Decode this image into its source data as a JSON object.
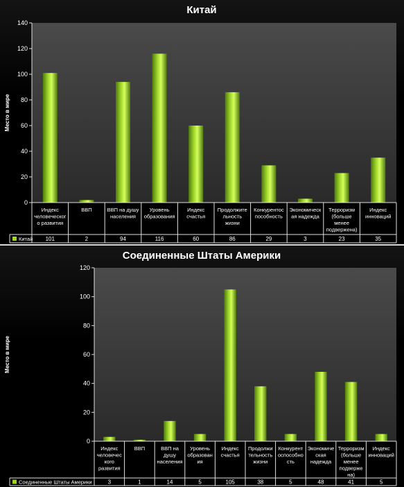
{
  "chart_data": [
    {
      "type": "bar",
      "title": "Китай",
      "ylabel": "Место в мире",
      "ylim": [
        0,
        140
      ],
      "yticks": [
        0,
        20,
        40,
        60,
        80,
        100,
        120,
        140
      ],
      "categories": [
        [
          "Индекс",
          "человеческог",
          "о развития"
        ],
        [
          "ВВП"
        ],
        [
          "ВВП на душу",
          "населения"
        ],
        [
          "Уровень",
          "образования"
        ],
        [
          "Индекс",
          "счастья"
        ],
        [
          "Продолжите",
          "льность",
          "жизни"
        ],
        [
          "Конкурентос",
          "пособность"
        ],
        [
          "Экономическ",
          "ая надежда"
        ],
        [
          "Терроризм",
          "(больше",
          "менее",
          "подвержена)"
        ],
        [
          "Индекс",
          "инноваций"
        ]
      ],
      "series": [
        {
          "name": "Китай",
          "values": [
            101,
            2,
            94,
            116,
            60,
            86,
            29,
            3,
            23,
            35
          ]
        }
      ],
      "grid": false,
      "legend": "table-left"
    },
    {
      "type": "bar",
      "title": "Соединенные Штаты Америки",
      "ylabel": "Место в мире",
      "ylim": [
        0,
        120
      ],
      "yticks": [
        0,
        20,
        40,
        60,
        80,
        100,
        120
      ],
      "categories": [
        [
          "Индекс",
          "человечес",
          "кого",
          "развития"
        ],
        [
          "ВВП"
        ],
        [
          "ВВП на",
          "душу",
          "населения"
        ],
        [
          "Уровень",
          "образован",
          "ия"
        ],
        [
          "Индекс",
          "счастья"
        ],
        [
          "Продолжи",
          "тельность",
          "жизни"
        ],
        [
          "Конкурент",
          "оспособно",
          "сть"
        ],
        [
          "Экономиче",
          "ская",
          "надежда"
        ],
        [
          "Терроризм",
          "(больше",
          "менее",
          "подверже",
          "на)"
        ],
        [
          "Индекс",
          "инноваций"
        ]
      ],
      "series": [
        {
          "name": "Соединенные Штаты Америки",
          "values": [
            3,
            1,
            14,
            5,
            105,
            38,
            5,
            48,
            41,
            5
          ]
        }
      ],
      "grid": false,
      "legend": "table-left"
    }
  ],
  "colors": {
    "bar_light": "#d4ff5a",
    "bar_mid": "#9fd42a",
    "bar_dark": "#4f7a0e",
    "plot_bg": "#3a3a3a",
    "table_bg": "#000000",
    "line": "#e0e0e0"
  }
}
